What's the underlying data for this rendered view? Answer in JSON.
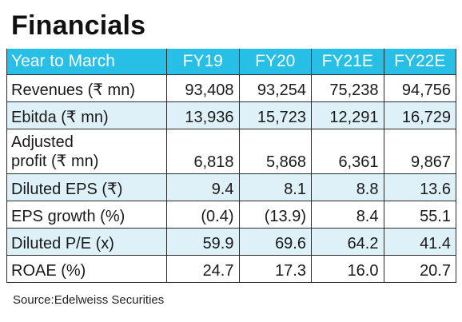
{
  "title": "Financials",
  "header": [
    "Year to March",
    "FY19",
    "FY20",
    "FY21E",
    "FY22E"
  ],
  "rows": [
    {
      "label": "Revenues (₹ mn)",
      "values": [
        "93,408",
        "93,254",
        "75,238",
        "94,756"
      ],
      "shaded": false
    },
    {
      "label": "Ebitda (₹ mn)",
      "values": [
        "13,936",
        "15,723",
        "12,291",
        "16,729"
      ],
      "shaded": true
    },
    {
      "label": "Adjusted profit (₹ mn)",
      "label_line1": "Adjusted",
      "label_line2": "profit (₹ mn)",
      "values": [
        "6,818",
        "5,868",
        "6,361",
        "9,867"
      ],
      "shaded": false
    },
    {
      "label": "Diluted EPS (₹)",
      "values": [
        "9.4",
        "8.1",
        "8.8",
        "13.6"
      ],
      "shaded": true
    },
    {
      "label": "EPS growth (%)",
      "values": [
        "(0.4)",
        "(13.9)",
        "8.4",
        "55.1"
      ],
      "shaded": false
    },
    {
      "label": "Diluted P/E (x)",
      "values": [
        "59.9",
        "69.6",
        "64.2",
        "41.4"
      ],
      "shaded": true
    },
    {
      "label": "ROAE (%)",
      "values": [
        "24.7",
        "17.3",
        "16.0",
        "20.7"
      ],
      "shaded": false
    }
  ],
  "source": "Source:Edelweiss Securities",
  "colors": {
    "header_bg": "#27bfe6",
    "shade_bg": "#dff1f8"
  }
}
